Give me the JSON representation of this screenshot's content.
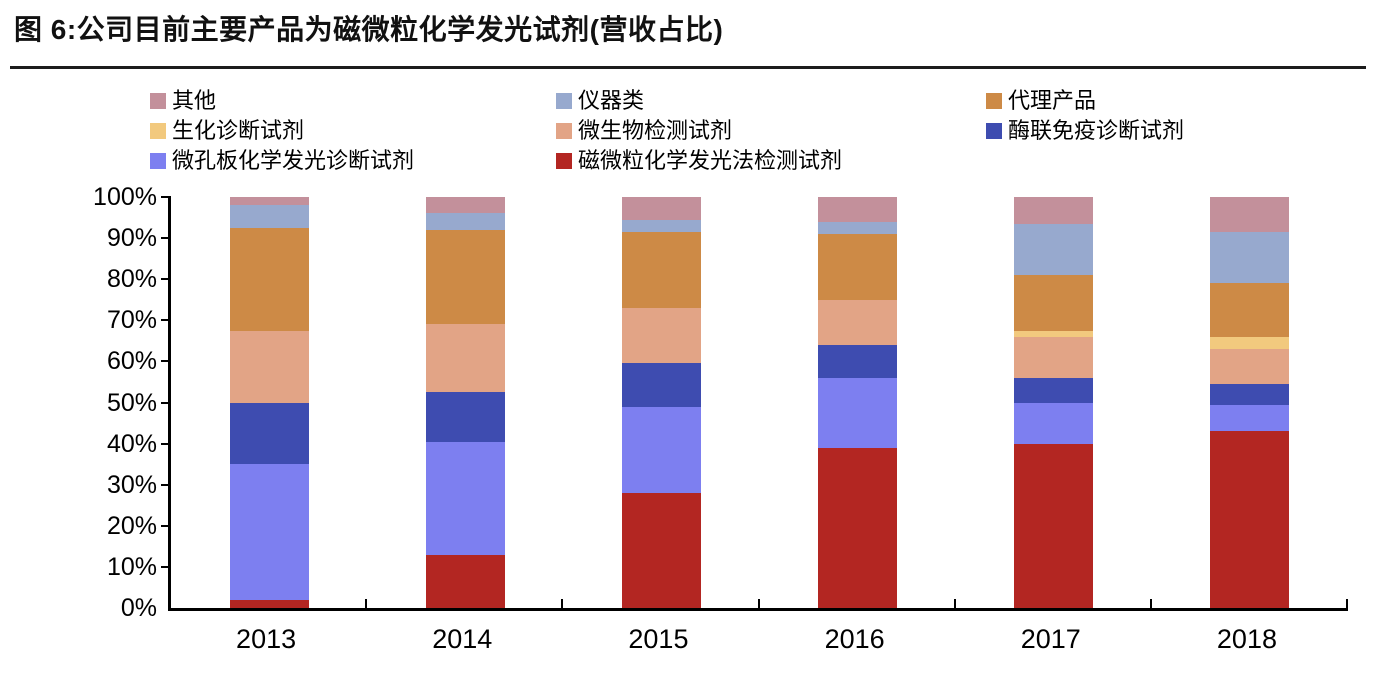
{
  "title": "图 6:公司目前主要产品为磁微粒化学发光试剂(营收占比)",
  "chart_data": {
    "type": "bar",
    "stacked": true,
    "percent": true,
    "title": "图 6:公司目前主要产品为磁微粒化学发光试剂(营收占比)",
    "categories": [
      "2013",
      "2014",
      "2015",
      "2016",
      "2017",
      "2018"
    ],
    "series": [
      {
        "name": "磁微粒化学发光法检测试剂",
        "color": "#b32622",
        "values": [
          2,
          13,
          28,
          39,
          40,
          43
        ]
      },
      {
        "name": "微孔板化学发光诊断试剂",
        "color": "#7d7ff0",
        "values": [
          33,
          27.5,
          21,
          17,
          10,
          6.5
        ]
      },
      {
        "name": "酶联免疫诊断试剂",
        "color": "#3e4cb0",
        "values": [
          15,
          12,
          10.5,
          8,
          6,
          5
        ]
      },
      {
        "name": "微生物检测试剂",
        "color": "#e2a486",
        "values": [
          17.5,
          16.5,
          13.5,
          11,
          10,
          8.5
        ]
      },
      {
        "name": "生化诊断试剂",
        "color": "#f2c97e",
        "values": [
          0,
          0,
          0,
          0,
          1.5,
          3
        ]
      },
      {
        "name": "代理产品",
        "color": "#cd8a46",
        "values": [
          25,
          23,
          18.5,
          16,
          13.5,
          13
        ]
      },
      {
        "name": "仪器类",
        "color": "#97a9ce",
        "values": [
          5.5,
          4,
          3,
          3,
          12.5,
          12.5
        ]
      },
      {
        "name": "其他",
        "color": "#c3909b",
        "values": [
          2,
          4,
          5.5,
          6,
          6.5,
          8.5
        ]
      }
    ],
    "legend_order": [
      "其他",
      "仪器类",
      "代理产品",
      "生化诊断试剂",
      "微生物检测试剂",
      "酶联免疫诊断试剂",
      "微孔板化学发光诊断试剂",
      "磁微粒化学发光法检测试剂"
    ],
    "legend_position": "top",
    "y_ticks": [
      "0%",
      "10%",
      "20%",
      "30%",
      "40%",
      "50%",
      "60%",
      "70%",
      "80%",
      "90%",
      "100%"
    ],
    "ylim": [
      0,
      100
    ],
    "xlabel": "",
    "ylabel": "",
    "grid": false
  }
}
